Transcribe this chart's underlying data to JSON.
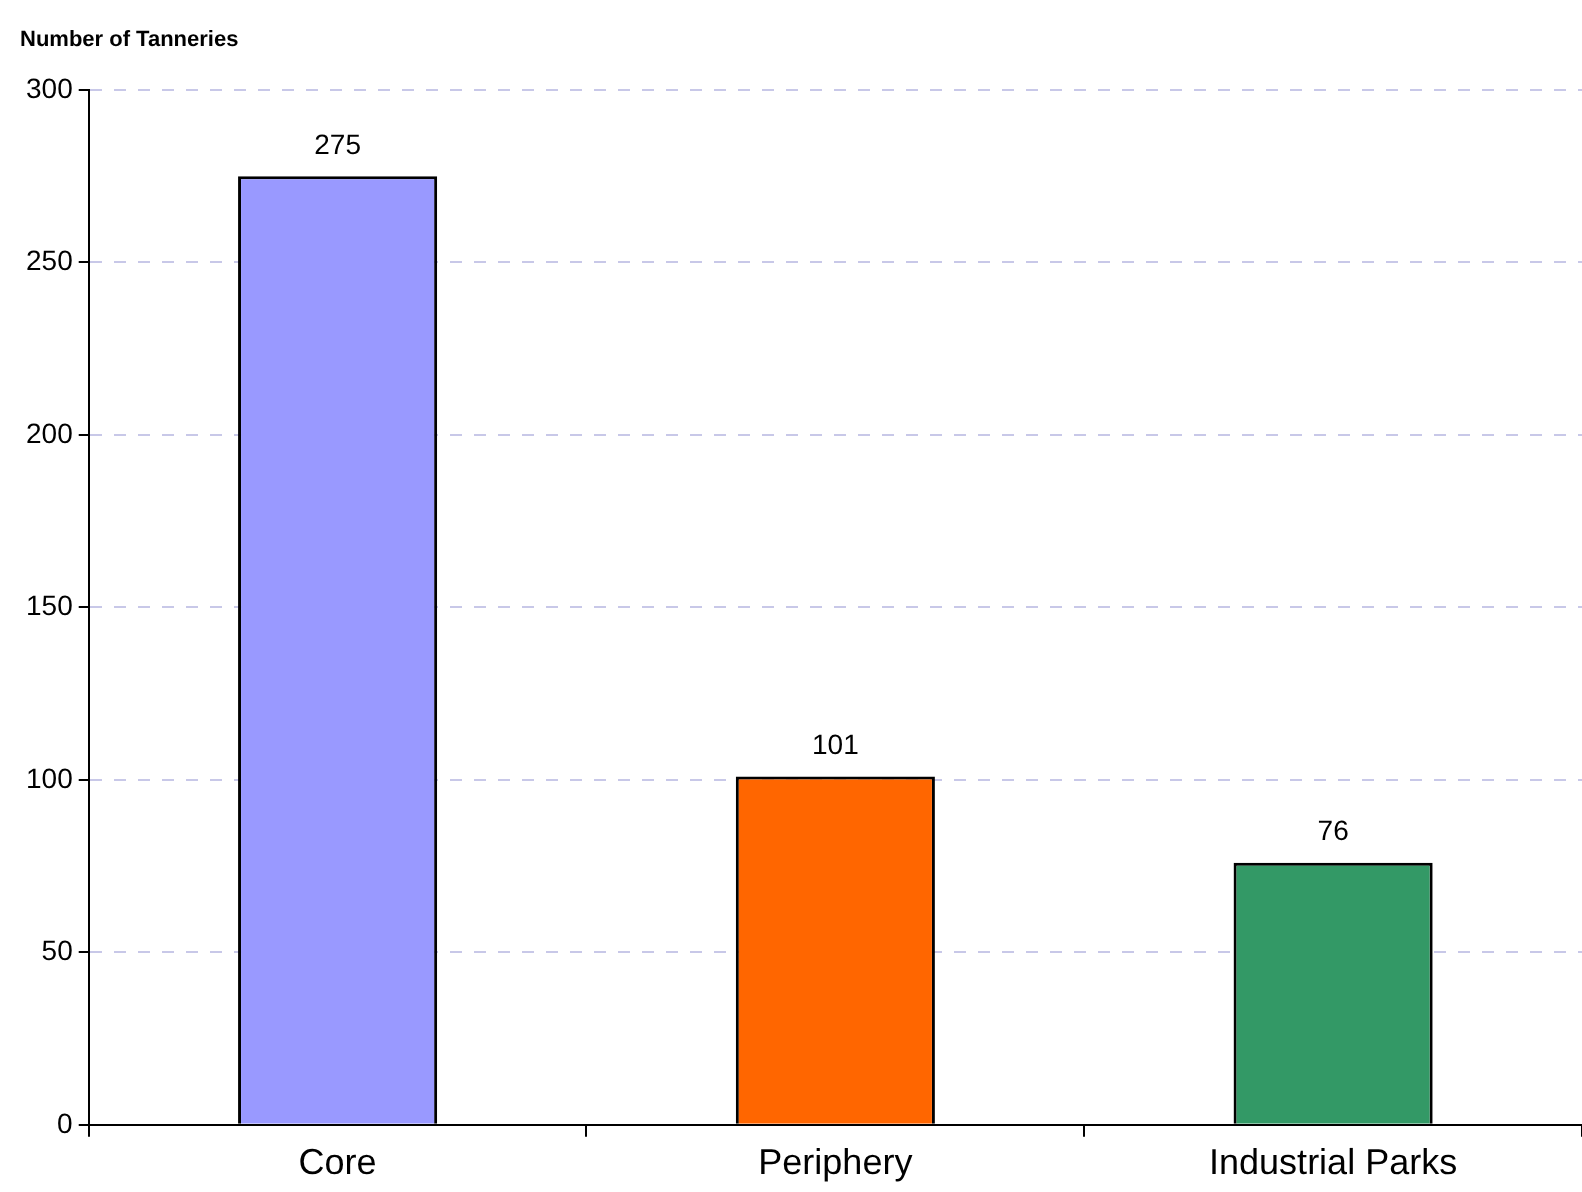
{
  "chart_data": {
    "type": "bar",
    "ylabel": "Number of Tanneries",
    "categories": [
      "Core",
      "Periphery",
      "Industrial Parks"
    ],
    "values": [
      275,
      101,
      76
    ],
    "colors": [
      "#9999ff",
      "#ff6600",
      "#339966"
    ],
    "ylim": [
      0,
      300
    ],
    "yticks": [
      0,
      50,
      100,
      150,
      200,
      250,
      300
    ],
    "grid": "y",
    "data_labels": true
  }
}
